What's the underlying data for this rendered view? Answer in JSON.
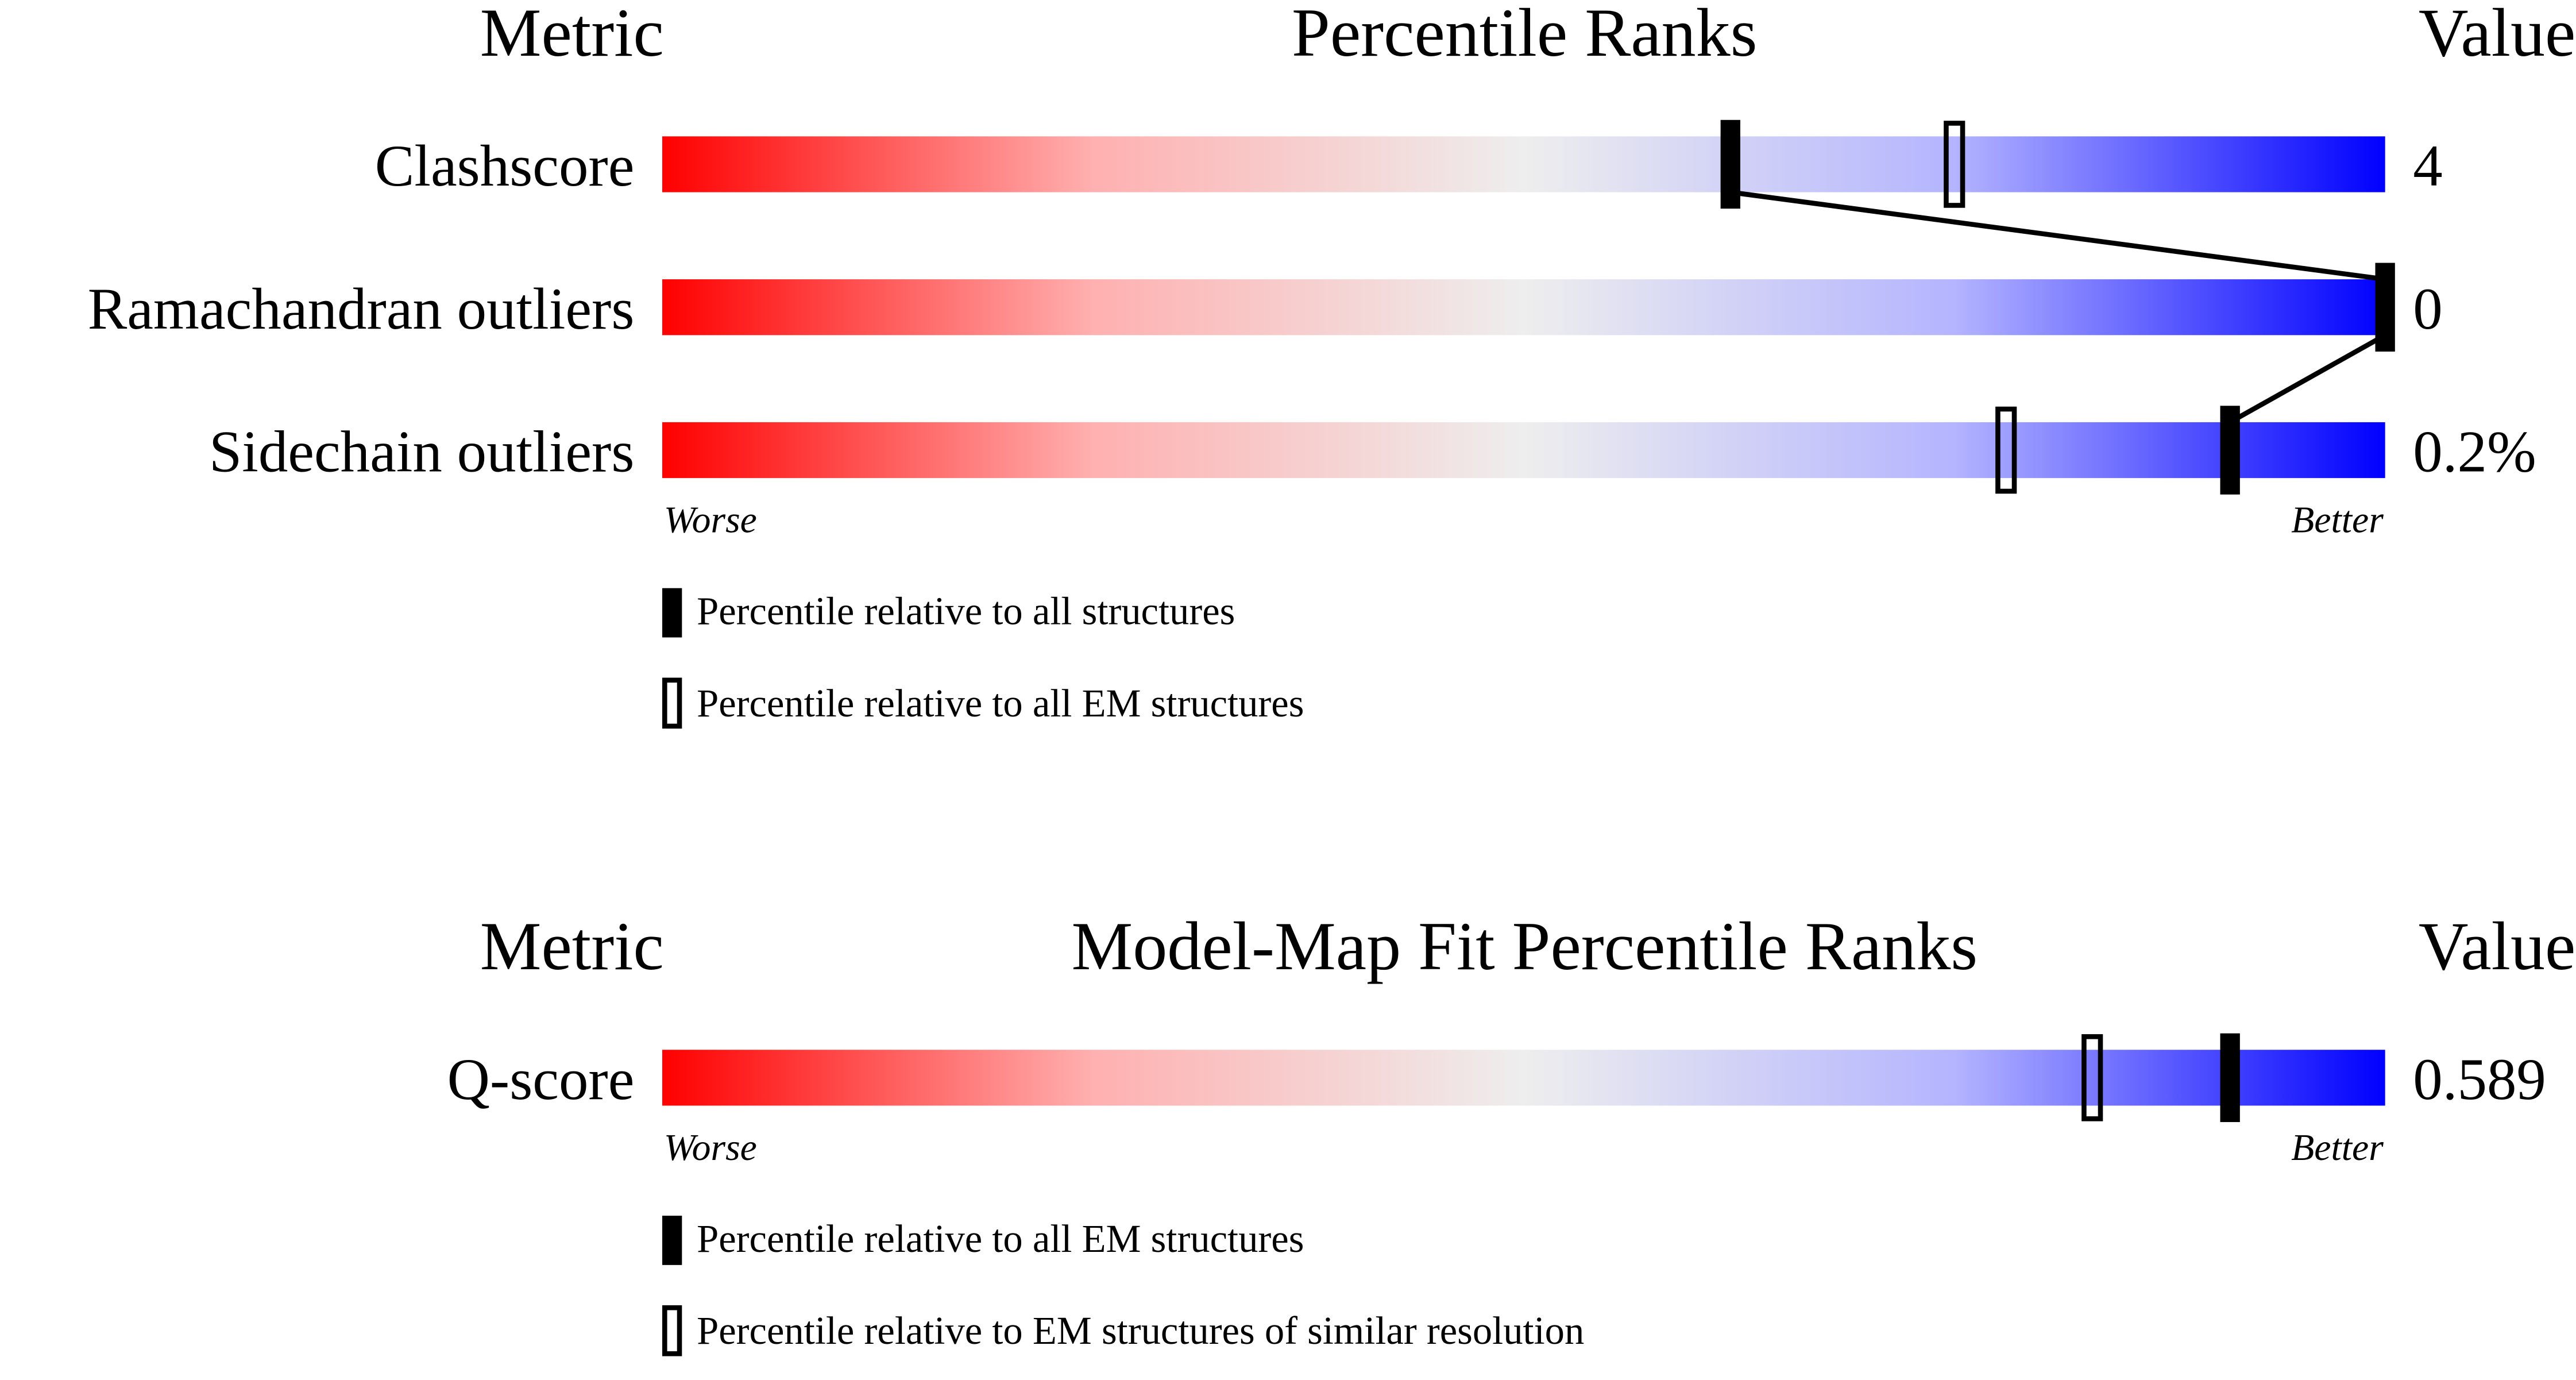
{
  "chart_data": [
    {
      "type": "bar",
      "headers": {
        "metric": "Metric",
        "title": "Percentile Ranks",
        "value": "Value"
      },
      "xlim": [
        0,
        100
      ],
      "axis_ends": {
        "left": "Worse",
        "right": "Better"
      },
      "metrics": [
        {
          "name": "Clashscore",
          "value": "4",
          "percentile_all": 62,
          "percentile_em": 75
        },
        {
          "name": "Ramachandran outliers",
          "value": "0",
          "percentile_all": 100,
          "percentile_em": null
        },
        {
          "name": "Sidechain outliers",
          "value": "0.2%",
          "percentile_all": 91,
          "percentile_em": 78
        }
      ],
      "legend": {
        "filled": "Percentile relative to all structures",
        "open": "Percentile relative to all EM structures"
      }
    },
    {
      "type": "bar",
      "headers": {
        "metric": "Metric",
        "title": "Model-Map Fit Percentile Ranks",
        "value": "Value"
      },
      "xlim": [
        0,
        100
      ],
      "axis_ends": {
        "left": "Worse",
        "right": "Better"
      },
      "metrics": [
        {
          "name": "Q-score",
          "value": "0.589",
          "percentile_all": 91,
          "percentile_em": 83
        }
      ],
      "legend": {
        "filled": "Percentile relative to all EM structures",
        "open": "Percentile relative to EM structures of similar resolution"
      }
    }
  ],
  "colors": {
    "worse": "#ff0000",
    "middle": "#eeeeee",
    "better": "#0000ff",
    "marker": "#000000"
  }
}
